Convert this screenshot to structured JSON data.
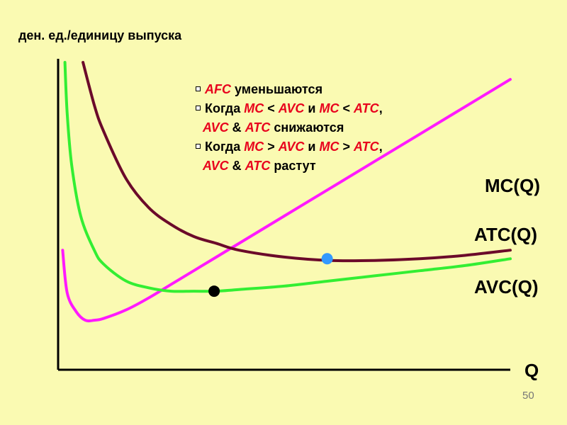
{
  "chart_data": {
    "type": "line",
    "ylabel": "ден. ед./единицу выпуска",
    "xlabel": "Q",
    "series": [
      {
        "name": "MC(Q)",
        "color": "#ff1aff",
        "points": [
          [
            0.1,
            0.7
          ],
          [
            0.2,
            0.45
          ],
          [
            0.4,
            0.34
          ],
          [
            0.6,
            0.29
          ],
          [
            0.8,
            0.29
          ],
          [
            1.0,
            0.3
          ],
          [
            1.5,
            0.35
          ],
          [
            2.0,
            0.42
          ],
          [
            2.5,
            0.5
          ],
          [
            3.0,
            0.58
          ],
          [
            3.5,
            0.66
          ],
          [
            4.0,
            0.74
          ],
          [
            5.0,
            0.9
          ],
          [
            6.0,
            1.06
          ],
          [
            7.0,
            1.22
          ],
          [
            8.0,
            1.38
          ],
          [
            9.0,
            1.54
          ],
          [
            10.0,
            1.7
          ]
        ]
      },
      {
        "name": "ATC(Q)",
        "color": "#6b0a2a",
        "points": [
          [
            0.55,
            1.8
          ],
          [
            0.8,
            1.55
          ],
          [
            1.0,
            1.4
          ],
          [
            1.5,
            1.12
          ],
          [
            2.0,
            0.95
          ],
          [
            2.5,
            0.85
          ],
          [
            3.0,
            0.78
          ],
          [
            3.5,
            0.74
          ],
          [
            4.0,
            0.7
          ],
          [
            5.0,
            0.66
          ],
          [
            6.0,
            0.64
          ],
          [
            7.0,
            0.64
          ],
          [
            8.0,
            0.65
          ],
          [
            9.0,
            0.67
          ],
          [
            10.0,
            0.7
          ]
        ]
      },
      {
        "name": "AVC(Q)",
        "color": "#33ee33",
        "points": [
          [
            0.15,
            1.8
          ],
          [
            0.2,
            1.5
          ],
          [
            0.3,
            1.2
          ],
          [
            0.5,
            0.9
          ],
          [
            0.8,
            0.7
          ],
          [
            1.0,
            0.62
          ],
          [
            1.5,
            0.52
          ],
          [
            2.0,
            0.48
          ],
          [
            2.5,
            0.46
          ],
          [
            3.0,
            0.46
          ],
          [
            3.5,
            0.46
          ],
          [
            4.0,
            0.47
          ],
          [
            5.0,
            0.49
          ],
          [
            6.0,
            0.52
          ],
          [
            7.0,
            0.55
          ],
          [
            8.0,
            0.58
          ],
          [
            9.0,
            0.61
          ],
          [
            10.0,
            0.65
          ]
        ]
      }
    ],
    "points": [
      {
        "x": 3.45,
        "y": 0.46,
        "color": "#000000"
      },
      {
        "x": 5.95,
        "y": 0.65,
        "color": "#3399ff"
      }
    ],
    "xlim": [
      0,
      10
    ],
    "ylim": [
      0,
      1.8
    ]
  },
  "notes": [
    {
      "indent": false,
      "bullet": true,
      "parts": [
        {
          "t": "AFC",
          "red": true
        },
        {
          "t": " уменьшаются",
          "red": false
        }
      ]
    },
    {
      "indent": false,
      "bullet": true,
      "parts": [
        {
          "t": "Когда ",
          "red": false
        },
        {
          "t": "MC",
          "red": true
        },
        {
          "t": " < ",
          "red": false
        },
        {
          "t": "AVC",
          "red": true
        },
        {
          "t": " и ",
          "red": false
        },
        {
          "t": "MC",
          "red": true
        },
        {
          "t": " < ",
          "red": false
        },
        {
          "t": "ATC",
          "red": true
        },
        {
          "t": ",",
          "red": false
        }
      ]
    },
    {
      "indent": true,
      "bullet": false,
      "parts": [
        {
          "t": "AVC",
          "red": true
        },
        {
          "t": " & ",
          "red": false
        },
        {
          "t": "ATC",
          "red": true
        },
        {
          "t": " снижаются",
          "red": false
        }
      ]
    },
    {
      "indent": false,
      "bullet": true,
      "parts": [
        {
          "t": "Когда ",
          "red": false
        },
        {
          "t": "MC",
          "red": true
        },
        {
          "t": " > ",
          "red": false
        },
        {
          "t": "AVC",
          "red": true
        },
        {
          "t": " и ",
          "red": false
        },
        {
          "t": "MC",
          "red": true
        },
        {
          "t": " > ",
          "red": false
        },
        {
          "t": "ATC",
          "red": true
        },
        {
          "t": ",",
          "red": false
        }
      ]
    },
    {
      "indent": true,
      "bullet": false,
      "parts": [
        {
          "t": "AVC",
          "red": true
        },
        {
          "t": " & ",
          "red": false
        },
        {
          "t": "ATC",
          "red": true
        },
        {
          "t": " растут",
          "red": false
        }
      ]
    }
  ],
  "page_number": "50"
}
